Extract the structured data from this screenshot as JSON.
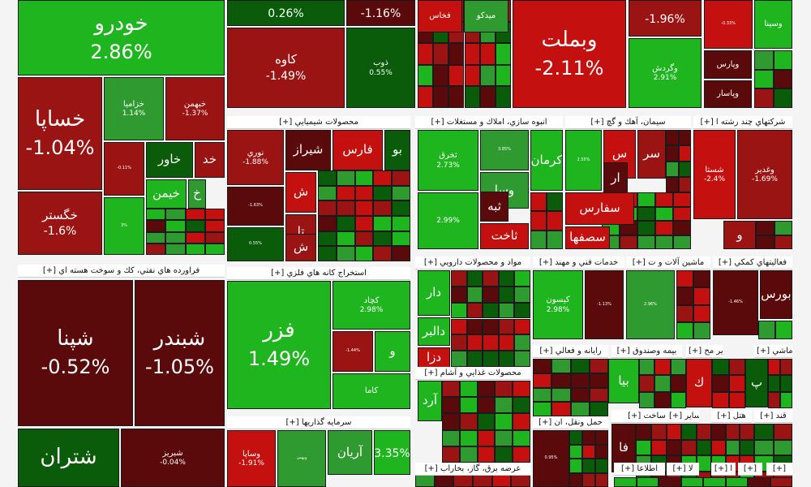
{
  "colors": {
    "strong_green": "#1fb51f",
    "green": "#2f9a2f",
    "dark_green": "#0a5c0a",
    "strong_red": "#c51010",
    "red": "#9a1414",
    "dark_red": "#5a0a0a",
    "header_bg": "#ffffff"
  },
  "chart_data": {
    "type": "heatmap",
    "description_visible": false,
    "value_unit": "%",
    "sectors": [
      {
        "label": "[+] فراورده هاي نفتي، كك و سوخت هسته اي"
      },
      {
        "label": "[+] محصولات شيميايي"
      },
      {
        "label": "[+] انبوه سازي، املاك و مستغلات"
      },
      {
        "label": "[+] سيمان، آهك و گچ"
      },
      {
        "label": "[+] شركتهاي چند رشته ا"
      },
      {
        "label": "[+] مواد و محصولات دارويي"
      },
      {
        "label": "[+] خدمات فني و مهند"
      },
      {
        "label": "[+] ماشين آلات و ت"
      },
      {
        "label": "[+] فعاليتهاي كمكي"
      },
      {
        "label": "[+] استخراج كانه هاي فلزي"
      },
      {
        "label": "[+] محصولات غذايي و آشام"
      },
      {
        "label": "[+] رايانه و فعالي"
      },
      {
        "label": "[+] بيمه وصندوق"
      },
      {
        "label": "[+] ساير مح"
      },
      {
        "label": "[+] ماشي"
      },
      {
        "label": "[+] سرمايه گذاريها"
      },
      {
        "label": "[+] حمل ونقل، ان"
      },
      {
        "label": "[+] ساخت"
      },
      {
        "label": "[+] ساير"
      },
      {
        "label": "[+] هتل"
      },
      {
        "label": "[+] قند"
      },
      {
        "label": "[+] عرضه برق، گاز، بخاراب"
      },
      {
        "label": "[+] اطلاعا"
      },
      {
        "label": "[+] لا"
      },
      {
        "label": "[+] ا"
      },
      {
        "label": "[+]"
      },
      {
        "label": "[+]"
      }
    ],
    "stocks": [
      {
        "name": "خودرو",
        "change": "2.86%"
      },
      {
        "name": "خساپا",
        "change": "-1.04%"
      },
      {
        "name": "خزاميا",
        "change": "1.14%"
      },
      {
        "name": "خبهمن",
        "change": "-1.37%"
      },
      {
        "name": "خاور",
        "change": ""
      },
      {
        "name": "خد",
        "change": ""
      },
      {
        "name": "خيمن",
        "change": ""
      },
      {
        "name": "خ",
        "change": ""
      },
      {
        "name": "خگستر",
        "change": "-1.6%"
      },
      {
        "name": "",
        "change": "-0.11%"
      },
      {
        "name": "",
        "change": "3%"
      },
      {
        "name": "",
        "change": "0.26%"
      },
      {
        "name": "",
        "change": "-1.16%"
      },
      {
        "name": "كاوه",
        "change": "-1.49%"
      },
      {
        "name": "ذوب",
        "change": "0.55%"
      },
      {
        "name": "فخاس",
        "change": ""
      },
      {
        "name": "ميدكو",
        "change": ""
      },
      {
        "name": "وبملت",
        "change": "-2.11%"
      },
      {
        "name": "",
        "change": "-1.96%"
      },
      {
        "name": "وسينا",
        "change": ""
      },
      {
        "name": "وگردش",
        "change": "2.91%"
      },
      {
        "name": "وپارس",
        "change": ""
      },
      {
        "name": "وپاسار",
        "change": ""
      },
      {
        "name": "",
        "change": "-0.33%"
      },
      {
        "name": "شپنا",
        "change": "-0.52%"
      },
      {
        "name": "شبندر",
        "change": "-1.05%"
      },
      {
        "name": "شتران",
        "change": ""
      },
      {
        "name": "شبريز",
        "change": "-0.04%"
      },
      {
        "name": "نوري",
        "change": "-1.88%"
      },
      {
        "name": "شيراز",
        "change": ""
      },
      {
        "name": "فارس",
        "change": ""
      },
      {
        "name": "بو",
        "change": ""
      },
      {
        "name": "",
        "change": "-1.63%"
      },
      {
        "name": "ش",
        "change": ""
      },
      {
        "name": "تا",
        "change": ""
      },
      {
        "name": "",
        "change": "0.55%"
      },
      {
        "name": "ش",
        "change": ""
      },
      {
        "name": "ثخرق",
        "change": "2.73%"
      },
      {
        "name": "",
        "change": "3.85%"
      },
      {
        "name": "كرمان",
        "change": ""
      },
      {
        "name": "وسا",
        "change": ""
      },
      {
        "name": "ثبه",
        "change": ""
      },
      {
        "name": "",
        "change": "2.99%"
      },
      {
        "name": "ثاخت",
        "change": ""
      },
      {
        "name": "",
        "change": "2.55%"
      },
      {
        "name": "س",
        "change": ""
      },
      {
        "name": "سر",
        "change": ""
      },
      {
        "name": "ار",
        "change": ""
      },
      {
        "name": "سفارس",
        "change": ""
      },
      {
        "name": "سصفها",
        "change": ""
      },
      {
        "name": "شستا",
        "change": "-2.4%"
      },
      {
        "name": "وغدير",
        "change": "-1.69%"
      },
      {
        "name": "و",
        "change": ""
      },
      {
        "name": "دار",
        "change": ""
      },
      {
        "name": "دالبر",
        "change": ""
      },
      {
        "name": "دزا",
        "change": ""
      },
      {
        "name": "كيسون",
        "change": "2.98%"
      },
      {
        "name": "",
        "change": "-1.13%"
      },
      {
        "name": "تايرا",
        "change": ""
      },
      {
        "name": "",
        "change": "2.96%"
      },
      {
        "name": "",
        "change": "-1.46%"
      },
      {
        "name": "بورس",
        "change": ""
      },
      {
        "name": "فزر",
        "change": "1.49%"
      },
      {
        "name": "كچاد",
        "change": "2.98%"
      },
      {
        "name": "",
        "change": "-1.44%"
      },
      {
        "name": "و",
        "change": ""
      },
      {
        "name": "كاما",
        "change": ""
      },
      {
        "name": "آرد",
        "change": ""
      },
      {
        "name": "بيا",
        "change": ""
      },
      {
        "name": "ك",
        "change": ""
      },
      {
        "name": "پ",
        "change": ""
      },
      {
        "name": "وساپا",
        "change": "-1.91%"
      },
      {
        "name": "وبهمن",
        "change": ""
      },
      {
        "name": "آريان",
        "change": ""
      },
      {
        "name": "",
        "change": "3.35%"
      },
      {
        "name": "",
        "change": "0.95%"
      },
      {
        "name": "فا",
        "change": ""
      }
    ]
  }
}
